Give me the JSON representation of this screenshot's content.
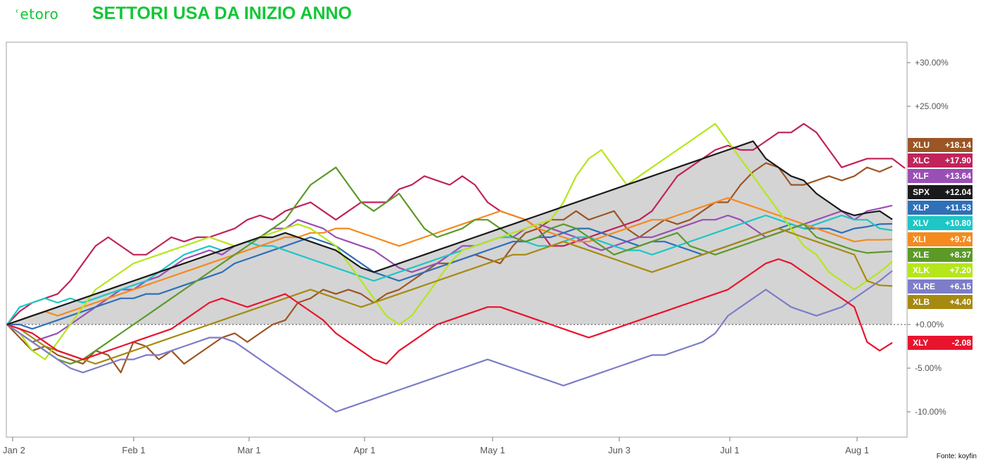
{
  "brand": {
    "logo_text": "etoro"
  },
  "header": {
    "title": "SETTORI USA DA INIZIO ANNO"
  },
  "footer": {
    "source": "Fonte: koyfin"
  },
  "chart_data": {
    "type": "line",
    "title": "SETTORI USA DA INIZIO ANNO",
    "xlabel": "",
    "ylabel": "",
    "x_tick_labels": [
      "Jan 2",
      "Feb 1",
      "Mar 1",
      "Apr 1",
      "May 1",
      "Jun 3",
      "Jul 1",
      "Aug 1"
    ],
    "y_tick_labels": [
      "+30.00%",
      "+25.00%",
      "+0.00%",
      "-5.00%",
      "-10.00%"
    ],
    "y_tick_values": [
      30,
      25,
      0,
      -5,
      -10
    ],
    "ylim": [
      -13,
      32
    ],
    "grid": false,
    "baseline": 0,
    "series": [
      {
        "name": "XLU",
        "last_label": "+18.14",
        "color": "#9c5524",
        "values": [
          0,
          -1.5,
          -3,
          -2.5,
          -3.5,
          -4,
          -4.5,
          -3,
          -3.5,
          -5.5,
          -2,
          -2.5,
          -4,
          -3,
          -4.5,
          -3.5,
          -2.5,
          -1.5,
          -1,
          -2,
          -1,
          0,
          0.5,
          2.5,
          3,
          4,
          3.5,
          4,
          3.5,
          2.5,
          3.5,
          4,
          5,
          6,
          7,
          7,
          7.5,
          8,
          7.5,
          7,
          9,
          10.5,
          11,
          12,
          12,
          13,
          12,
          12.5,
          13,
          11,
          10,
          11,
          12,
          11.5,
          12,
          13,
          14,
          14,
          16,
          17.5,
          18.5,
          18,
          16,
          16,
          16.5,
          17,
          16.5,
          17,
          18,
          17.5,
          18.14
        ]
      },
      {
        "name": "XLC",
        "last_label": "+17.90",
        "color": "#c0245a",
        "values": [
          0,
          1.5,
          2.5,
          3,
          3.5,
          5,
          7,
          9,
          10,
          9,
          8,
          8,
          9,
          10,
          9.5,
          10,
          10,
          10.5,
          11,
          12,
          12.5,
          12,
          13,
          13.5,
          14,
          13,
          12,
          13,
          14,
          14,
          14,
          15.5,
          16,
          17,
          16.5,
          16,
          17,
          16,
          14,
          13,
          12.5,
          12,
          11,
          9,
          9,
          9.5,
          10,
          10.5,
          11,
          11.5,
          12,
          13,
          15,
          17,
          18,
          19,
          20,
          20.5,
          20,
          20,
          21,
          22,
          22,
          23,
          22,
          20,
          18,
          18.5,
          19,
          19,
          19,
          17.9
        ]
      },
      {
        "name": "XLF",
        "last_label": "+13.64",
        "color": "#9a4fb5",
        "values": [
          0,
          -1,
          -2,
          -1.5,
          -1,
          0,
          1,
          2,
          3,
          4,
          4,
          5,
          5.5,
          6.5,
          7.5,
          8,
          8.5,
          8,
          9,
          9.5,
          10,
          11,
          11,
          12,
          11.5,
          11,
          10,
          9.5,
          9,
          8.5,
          7.5,
          6.5,
          6,
          6.5,
          7,
          8,
          9,
          9,
          9.5,
          10,
          10,
          11,
          11.5,
          11,
          10.5,
          10,
          9,
          8.5,
          9,
          9.5,
          10,
          10,
          10.5,
          11,
          11.5,
          12,
          12,
          12.5,
          12,
          11,
          10,
          10.5,
          11,
          11.5,
          12,
          12.5,
          13,
          12,
          13,
          13.3,
          13.64
        ]
      },
      {
        "name": "SPX",
        "last_label": "+12.04",
        "color": "#1a1a1a",
        "values": [
          0,
          0.5,
          1,
          1.5,
          2,
          2.5,
          3,
          3.5,
          4,
          4.5,
          5,
          5.5,
          6,
          6.5,
          7,
          7.5,
          8,
          8.5,
          9,
          9.5,
          10,
          10,
          10.5,
          10,
          9.5,
          9,
          8.5,
          7.5,
          6.5,
          6,
          6.5,
          7,
          7.5,
          8,
          8.5,
          9,
          9.5,
          10,
          10.5,
          11,
          11.5,
          12,
          12.5,
          13,
          13.5,
          14,
          14.5,
          15,
          15.5,
          16,
          16.5,
          17,
          17.5,
          18,
          18.5,
          19,
          19.5,
          20,
          20.5,
          21,
          19,
          18,
          17,
          16.5,
          15,
          14,
          13,
          12.5,
          12.8,
          13,
          12.04
        ]
      },
      {
        "name": "XLP",
        "last_label": "+11.53",
        "color": "#2f70b7",
        "values": [
          0,
          0,
          -0.5,
          0,
          0.5,
          1,
          1.5,
          2,
          2.5,
          3,
          3,
          3.5,
          3.5,
          4,
          4.5,
          5,
          5.5,
          6,
          7,
          7.5,
          8,
          8.5,
          9,
          9.5,
          10,
          9.5,
          9,
          8,
          7,
          6,
          5.5,
          5,
          5.5,
          6,
          6.5,
          7,
          7.5,
          8,
          8.5,
          9,
          9.5,
          9.5,
          10,
          10,
          10.5,
          11,
          11,
          10.5,
          10,
          9.5,
          9,
          9.5,
          9.5,
          9,
          8.5,
          8,
          8.5,
          9,
          9.5,
          10,
          10.5,
          11,
          11.5,
          11,
          11,
          11,
          10.5,
          11,
          11.2,
          11.5,
          11.53
        ]
      },
      {
        "name": "XLV",
        "last_label": "+10.80",
        "color": "#1ec6c6",
        "values": [
          0,
          2,
          2.5,
          3,
          2.5,
          3,
          2.5,
          3,
          3.5,
          4,
          4.5,
          5,
          6,
          7,
          8,
          8.5,
          9,
          8.5,
          9,
          9.5,
          9,
          9,
          8.5,
          8,
          7.5,
          7,
          6.5,
          6,
          5.5,
          5,
          5.5,
          6,
          6.5,
          7,
          7.5,
          8,
          8.5,
          9,
          9.5,
          10,
          10,
          9.5,
          9,
          9,
          9.5,
          10,
          10,
          9.5,
          9,
          8.5,
          8.5,
          8,
          8.5,
          9,
          9.5,
          10,
          10.5,
          11,
          11.5,
          12,
          12.5,
          12,
          11.5,
          11,
          11.5,
          12,
          12.5,
          12,
          12,
          11,
          10.8
        ]
      },
      {
        "name": "XLI",
        "last_label": "+9.74",
        "color": "#f58a1f",
        "values": [
          0,
          0.5,
          1,
          1.5,
          1,
          1.5,
          2,
          2.5,
          3,
          3.5,
          4,
          4.5,
          5,
          5.5,
          6,
          6.5,
          7,
          7.5,
          8,
          8.5,
          9,
          9.5,
          10,
          10,
          10.5,
          10.5,
          11,
          11,
          10.5,
          10,
          9.5,
          9,
          9.5,
          10,
          10.5,
          11,
          11.5,
          12,
          12.5,
          13,
          12.5,
          12,
          11,
          10.5,
          10,
          9.5,
          9.5,
          10,
          10.5,
          11,
          11.5,
          12,
          12,
          12.5,
          13,
          13.5,
          14,
          14.5,
          14,
          13.5,
          13,
          12.5,
          12,
          11.5,
          11,
          10.5,
          10,
          9.5,
          9.7,
          9.7,
          9.74
        ]
      },
      {
        "name": "XLE",
        "last_label": "+8.37",
        "color": "#5c9a28",
        "values": [
          0,
          -1,
          -2,
          -3,
          -4,
          -4.5,
          -4,
          -3,
          -2,
          -1,
          0,
          1,
          2,
          3,
          4,
          5,
          6,
          7,
          8,
          9,
          10,
          11,
          12,
          14,
          16,
          17,
          18,
          16,
          14,
          13,
          14,
          15,
          13,
          11,
          10,
          10.5,
          11,
          12,
          12,
          11,
          10,
          9.5,
          10,
          11,
          11.5,
          11,
          10,
          9,
          8,
          8.5,
          9,
          9.5,
          10,
          10.5,
          9,
          8.5,
          8,
          8.5,
          9,
          9.5,
          10,
          10.5,
          11,
          11.5,
          10,
          9.5,
          9,
          8.5,
          8.2,
          8.3,
          8.37
        ]
      },
      {
        "name": "XLK",
        "last_label": "+7.20",
        "color": "#b5e61d",
        "values": [
          0,
          -1,
          -3,
          -4,
          -2,
          0,
          2,
          4,
          5,
          6,
          7,
          7.5,
          8,
          8.5,
          9,
          9.5,
          10,
          9.5,
          9,
          9.5,
          10,
          10.5,
          11,
          11.5,
          11,
          10,
          9,
          7,
          5,
          3,
          1,
          0,
          1,
          3,
          5,
          7,
          8.5,
          9,
          9.5,
          10,
          10.5,
          11,
          11.5,
          12,
          14,
          17,
          19,
          20,
          18,
          16,
          17,
          18,
          19,
          20,
          21,
          22,
          23,
          21,
          19,
          17,
          15,
          13,
          11,
          9,
          8,
          6,
          5,
          4,
          5,
          6,
          7.2
        ]
      },
      {
        "name": "XLRE",
        "last_label": "+6.15",
        "color": "#7d7dc9",
        "values": [
          0,
          -1,
          -2,
          -3,
          -4,
          -5,
          -5.5,
          -5,
          -4.5,
          -4,
          -4,
          -3.5,
          -3.5,
          -3,
          -2.5,
          -2,
          -1.5,
          -1.5,
          -2,
          -3,
          -4,
          -5,
          -6,
          -7,
          -8,
          -9,
          -10,
          -9.5,
          -9,
          -8.5,
          -8,
          -7.5,
          -7,
          -6.5,
          -6,
          -5.5,
          -5,
          -4.5,
          -4,
          -4.5,
          -5,
          -5.5,
          -6,
          -6.5,
          -7,
          -6.5,
          -6,
          -5.5,
          -5,
          -4.5,
          -4,
          -3.5,
          -3.5,
          -3,
          -2.5,
          -2,
          -1,
          1,
          2,
          3,
          4,
          3,
          2,
          1.5,
          1,
          1.5,
          2,
          3,
          4,
          5,
          6.15
        ]
      },
      {
        "name": "XLB",
        "last_label": "+4.40",
        "color": "#a68a10",
        "values": [
          0,
          -0.5,
          -1.5,
          -2.5,
          -3,
          -3.5,
          -4,
          -4.5,
          -4,
          -3.5,
          -3,
          -2.5,
          -2,
          -1.5,
          -1,
          -0.5,
          0,
          0.5,
          1,
          1.5,
          2,
          2.5,
          3,
          3.5,
          4,
          3.5,
          3,
          2.5,
          2,
          2.5,
          3,
          3.5,
          4,
          4.5,
          5,
          5.5,
          6,
          6.5,
          7,
          7.5,
          8,
          8,
          8.5,
          9,
          9.5,
          9,
          8.5,
          8,
          7.5,
          7,
          6.5,
          6,
          6.5,
          7,
          7.5,
          8,
          8.5,
          9,
          9.5,
          10,
          10.5,
          11,
          10.5,
          10,
          9.5,
          9,
          8.5,
          8,
          5,
          4.5,
          4.4
        ]
      },
      {
        "name": "XLY",
        "last_label": "-2.08",
        "color": "#e8142e",
        "values": [
          0,
          -0.5,
          -1,
          -2,
          -3,
          -3.5,
          -4,
          -3.5,
          -3,
          -2.5,
          -2,
          -1.5,
          -1,
          -0.5,
          0.5,
          1.5,
          2.5,
          3,
          2.5,
          2,
          2.5,
          3,
          3.5,
          2.5,
          1.5,
          0.5,
          -1,
          -2,
          -3,
          -4,
          -4.5,
          -3,
          -2,
          -1,
          0,
          0.5,
          1,
          1.5,
          2,
          2,
          1.5,
          1,
          0.5,
          0,
          -0.5,
          -1,
          -1.5,
          -1,
          -0.5,
          0,
          0.5,
          1,
          1.5,
          2,
          2.5,
          3,
          3.5,
          4,
          5,
          6,
          7,
          7.5,
          7,
          6,
          5,
          4,
          3,
          2,
          -2,
          -3,
          -2.08
        ]
      }
    ]
  }
}
